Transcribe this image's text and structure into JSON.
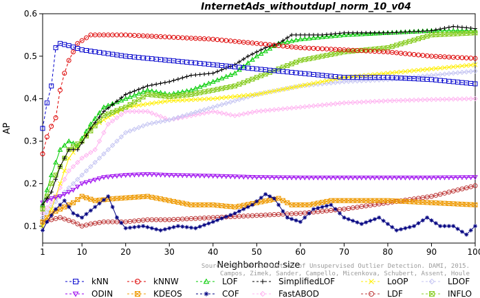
{
  "chart_data": {
    "type": "line",
    "title": "InternetAds_withoutdupl_norm_10_v04",
    "xlabel": "Neighborhood size",
    "ylabel": "AP",
    "xlim": [
      1,
      100
    ],
    "ylim": [
      0.06,
      0.6
    ],
    "xticks": [
      1,
      10,
      20,
      30,
      40,
      50,
      60,
      70,
      80,
      90,
      100
    ],
    "yticks": [
      0.1,
      0.2,
      0.3,
      0.4,
      0.5,
      0.6
    ],
    "grid": false,
    "legend_position": "bottom",
    "watermark_lines": [
      "Source: On the Evaluation of Unsupervised Outlier Detection. DAMI, 2015.",
      "Campos, Zimek, Sander, Campello, Micenkova, Schubert, Assent, Houle"
    ],
    "series": [
      {
        "name": "kNN",
        "color": "#0000cc",
        "marker": "square",
        "dashed": true,
        "points": [
          [
            1,
            0.33
          ],
          [
            2,
            0.39
          ],
          [
            3,
            0.43
          ],
          [
            4,
            0.52
          ],
          [
            5,
            0.53
          ],
          [
            7,
            0.525
          ],
          [
            10,
            0.515
          ],
          [
            20,
            0.5
          ],
          [
            30,
            0.49
          ],
          [
            40,
            0.48
          ],
          [
            50,
            0.47
          ],
          [
            60,
            0.46
          ],
          [
            70,
            0.45
          ],
          [
            80,
            0.45
          ],
          [
            90,
            0.445
          ],
          [
            100,
            0.435
          ]
        ]
      },
      {
        "name": "kNNW",
        "color": "#dd0000",
        "marker": "circle",
        "dashed": true,
        "points": [
          [
            1,
            0.27
          ],
          [
            2,
            0.31
          ],
          [
            3,
            0.335
          ],
          [
            4,
            0.355
          ],
          [
            5,
            0.42
          ],
          [
            6,
            0.46
          ],
          [
            7,
            0.49
          ],
          [
            9,
            0.53
          ],
          [
            12,
            0.55
          ],
          [
            20,
            0.55
          ],
          [
            30,
            0.545
          ],
          [
            40,
            0.54
          ],
          [
            50,
            0.53
          ],
          [
            60,
            0.52
          ],
          [
            70,
            0.515
          ],
          [
            80,
            0.51
          ],
          [
            90,
            0.5
          ],
          [
            100,
            0.495
          ]
        ]
      },
      {
        "name": "LOF",
        "color": "#00cc00",
        "marker": "triangle",
        "points": [
          [
            1,
            0.15
          ],
          [
            3,
            0.22
          ],
          [
            5,
            0.28
          ],
          [
            7,
            0.3
          ],
          [
            9,
            0.29
          ],
          [
            12,
            0.34
          ],
          [
            15,
            0.38
          ],
          [
            20,
            0.4
          ],
          [
            25,
            0.42
          ],
          [
            30,
            0.41
          ],
          [
            35,
            0.42
          ],
          [
            40,
            0.44
          ],
          [
            45,
            0.46
          ],
          [
            50,
            0.5
          ],
          [
            55,
            0.53
          ],
          [
            60,
            0.54
          ],
          [
            70,
            0.55
          ],
          [
            80,
            0.555
          ],
          [
            90,
            0.56
          ],
          [
            100,
            0.56
          ]
        ]
      },
      {
        "name": "SimplifiedLOF",
        "color": "#000000",
        "marker": "plus",
        "points": [
          [
            1,
            0.15
          ],
          [
            3,
            0.18
          ],
          [
            5,
            0.24
          ],
          [
            7,
            0.28
          ],
          [
            9,
            0.28
          ],
          [
            12,
            0.33
          ],
          [
            15,
            0.37
          ],
          [
            20,
            0.41
          ],
          [
            25,
            0.43
          ],
          [
            30,
            0.44
          ],
          [
            35,
            0.455
          ],
          [
            40,
            0.46
          ],
          [
            45,
            0.48
          ],
          [
            48,
            0.5
          ],
          [
            52,
            0.52
          ],
          [
            55,
            0.53
          ],
          [
            58,
            0.55
          ],
          [
            65,
            0.55
          ],
          [
            70,
            0.555
          ],
          [
            80,
            0.555
          ],
          [
            90,
            0.56
          ],
          [
            95,
            0.57
          ],
          [
            100,
            0.565
          ]
        ]
      },
      {
        "name": "LoOP",
        "color": "#ffee00",
        "marker": "x",
        "points": [
          [
            1,
            0.1
          ],
          [
            3,
            0.14
          ],
          [
            5,
            0.2
          ],
          [
            7,
            0.26
          ],
          [
            10,
            0.3
          ],
          [
            12,
            0.33
          ],
          [
            15,
            0.35
          ],
          [
            20,
            0.38
          ],
          [
            30,
            0.395
          ],
          [
            40,
            0.4
          ],
          [
            50,
            0.41
          ],
          [
            60,
            0.43
          ],
          [
            70,
            0.45
          ],
          [
            80,
            0.46
          ],
          [
            90,
            0.47
          ],
          [
            100,
            0.48
          ]
        ]
      },
      {
        "name": "LDOF",
        "color": "#c4c4f2",
        "marker": "diamond",
        "points": [
          [
            1,
            0.12
          ],
          [
            5,
            0.17
          ],
          [
            10,
            0.22
          ],
          [
            15,
            0.27
          ],
          [
            20,
            0.32
          ],
          [
            25,
            0.34
          ],
          [
            30,
            0.35
          ],
          [
            40,
            0.38
          ],
          [
            50,
            0.41
          ],
          [
            60,
            0.43
          ],
          [
            70,
            0.44
          ],
          [
            80,
            0.445
          ],
          [
            90,
            0.455
          ],
          [
            100,
            0.465
          ]
        ]
      },
      {
        "name": "ODIN",
        "color": "#9900ee",
        "marker": "tri_down",
        "points": [
          [
            1,
            0.155
          ],
          [
            3,
            0.165
          ],
          [
            5,
            0.17
          ],
          [
            8,
            0.185
          ],
          [
            10,
            0.2
          ],
          [
            15,
            0.215
          ],
          [
            20,
            0.22
          ],
          [
            25,
            0.222
          ],
          [
            30,
            0.22
          ],
          [
            40,
            0.218
          ],
          [
            50,
            0.215
          ],
          [
            60,
            0.214
          ],
          [
            70,
            0.214
          ],
          [
            80,
            0.214
          ],
          [
            90,
            0.214
          ],
          [
            100,
            0.215
          ]
        ]
      },
      {
        "name": "KDEOS",
        "color": "#ee9900",
        "marker": "square_x",
        "points": [
          [
            1,
            0.11
          ],
          [
            3,
            0.13
          ],
          [
            5,
            0.14
          ],
          [
            8,
            0.155
          ],
          [
            10,
            0.17
          ],
          [
            13,
            0.16
          ],
          [
            18,
            0.165
          ],
          [
            25,
            0.17
          ],
          [
            30,
            0.16
          ],
          [
            35,
            0.15
          ],
          [
            40,
            0.15
          ],
          [
            45,
            0.145
          ],
          [
            50,
            0.155
          ],
          [
            55,
            0.165
          ],
          [
            58,
            0.15
          ],
          [
            62,
            0.15
          ],
          [
            67,
            0.16
          ],
          [
            70,
            0.16
          ],
          [
            80,
            0.16
          ],
          [
            90,
            0.155
          ],
          [
            100,
            0.15
          ]
        ]
      },
      {
        "name": "COF",
        "color": "#000080",
        "marker": "asterisk",
        "points": [
          [
            1,
            0.09
          ],
          [
            2,
            0.11
          ],
          [
            4,
            0.14
          ],
          [
            6,
            0.16
          ],
          [
            8,
            0.13
          ],
          [
            10,
            0.12
          ],
          [
            13,
            0.145
          ],
          [
            16,
            0.17
          ],
          [
            18,
            0.12
          ],
          [
            20,
            0.095
          ],
          [
            24,
            0.1
          ],
          [
            28,
            0.09
          ],
          [
            32,
            0.1
          ],
          [
            36,
            0.095
          ],
          [
            40,
            0.11
          ],
          [
            45,
            0.13
          ],
          [
            49,
            0.15
          ],
          [
            52,
            0.175
          ],
          [
            54,
            0.165
          ],
          [
            57,
            0.12
          ],
          [
            60,
            0.11
          ],
          [
            63,
            0.14
          ],
          [
            67,
            0.15
          ],
          [
            70,
            0.12
          ],
          [
            74,
            0.105
          ],
          [
            78,
            0.12
          ],
          [
            82,
            0.09
          ],
          [
            86,
            0.1
          ],
          [
            89,
            0.12
          ],
          [
            92,
            0.1
          ],
          [
            95,
            0.1
          ],
          [
            98,
            0.08
          ],
          [
            100,
            0.1
          ]
        ]
      },
      {
        "name": "FastABOD",
        "color": "#ffb3f0",
        "marker": "diamond",
        "points": [
          [
            1,
            0.13
          ],
          [
            4,
            0.17
          ],
          [
            7,
            0.23
          ],
          [
            10,
            0.26
          ],
          [
            13,
            0.28
          ],
          [
            16,
            0.34
          ],
          [
            20,
            0.37
          ],
          [
            25,
            0.37
          ],
          [
            30,
            0.35
          ],
          [
            35,
            0.36
          ],
          [
            40,
            0.37
          ],
          [
            45,
            0.36
          ],
          [
            50,
            0.37
          ],
          [
            55,
            0.375
          ],
          [
            60,
            0.38
          ],
          [
            70,
            0.39
          ],
          [
            80,
            0.395
          ],
          [
            90,
            0.398
          ],
          [
            100,
            0.4
          ]
        ]
      },
      {
        "name": "LDF",
        "color": "#bb3333",
        "marker": "circle",
        "points": [
          [
            1,
            0.11
          ],
          [
            5,
            0.12
          ],
          [
            8,
            0.11
          ],
          [
            10,
            0.1
          ],
          [
            12,
            0.105
          ],
          [
            15,
            0.11
          ],
          [
            20,
            0.11
          ],
          [
            25,
            0.115
          ],
          [
            30,
            0.115
          ],
          [
            40,
            0.12
          ],
          [
            50,
            0.125
          ],
          [
            60,
            0.13
          ],
          [
            70,
            0.14
          ],
          [
            80,
            0.155
          ],
          [
            90,
            0.17
          ],
          [
            100,
            0.195
          ]
        ]
      },
      {
        "name": "INFLO",
        "color": "#88cc22",
        "marker": "square_x",
        "points": [
          [
            1,
            0.14
          ],
          [
            3,
            0.2
          ],
          [
            5,
            0.24
          ],
          [
            7,
            0.28
          ],
          [
            10,
            0.3
          ],
          [
            15,
            0.36
          ],
          [
            20,
            0.38
          ],
          [
            25,
            0.41
          ],
          [
            30,
            0.405
          ],
          [
            35,
            0.41
          ],
          [
            40,
            0.42
          ],
          [
            45,
            0.43
          ],
          [
            50,
            0.45
          ],
          [
            55,
            0.47
          ],
          [
            60,
            0.49
          ],
          [
            70,
            0.51
          ],
          [
            80,
            0.52
          ],
          [
            90,
            0.55
          ],
          [
            100,
            0.555
          ]
        ]
      }
    ]
  }
}
